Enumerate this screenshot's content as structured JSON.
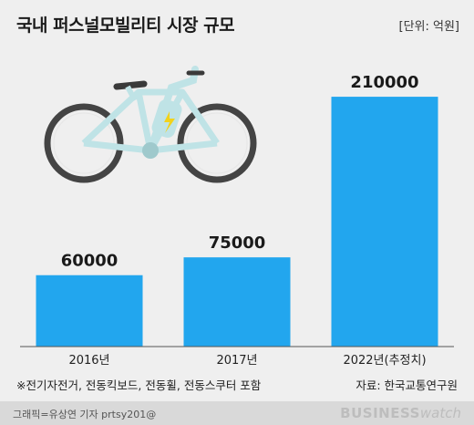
{
  "chart_data": {
    "type": "bar",
    "title": "국내 퍼스널모빌리티 시장 규모",
    "unit_label": "[단위: 억원]",
    "categories": [
      "2016년",
      "2017년",
      "2022년(추정치)"
    ],
    "values": [
      60000,
      75000,
      210000
    ],
    "data_labels": [
      "60000",
      "75000",
      "210000"
    ],
    "bar_color": "#22a6ee",
    "xlabel": "",
    "ylabel": "",
    "ylim": [
      0,
      230000
    ],
    "grid": false
  },
  "note": "※전기자전거, 전동킥보드, 전동휠, 전동스쿠터 포함",
  "source": "자료: 한국교통연구원",
  "footer": {
    "credit": "그래픽=유상연 기자 prtsy201@",
    "brand_bold": "BUSINESS",
    "brand_light": "watch"
  },
  "illustration": {
    "icon": "electric-bicycle-icon",
    "frame_color": "#bfe3e6",
    "wheel_color": "#4a4a4a",
    "bolt_color": "#f2d21b"
  }
}
